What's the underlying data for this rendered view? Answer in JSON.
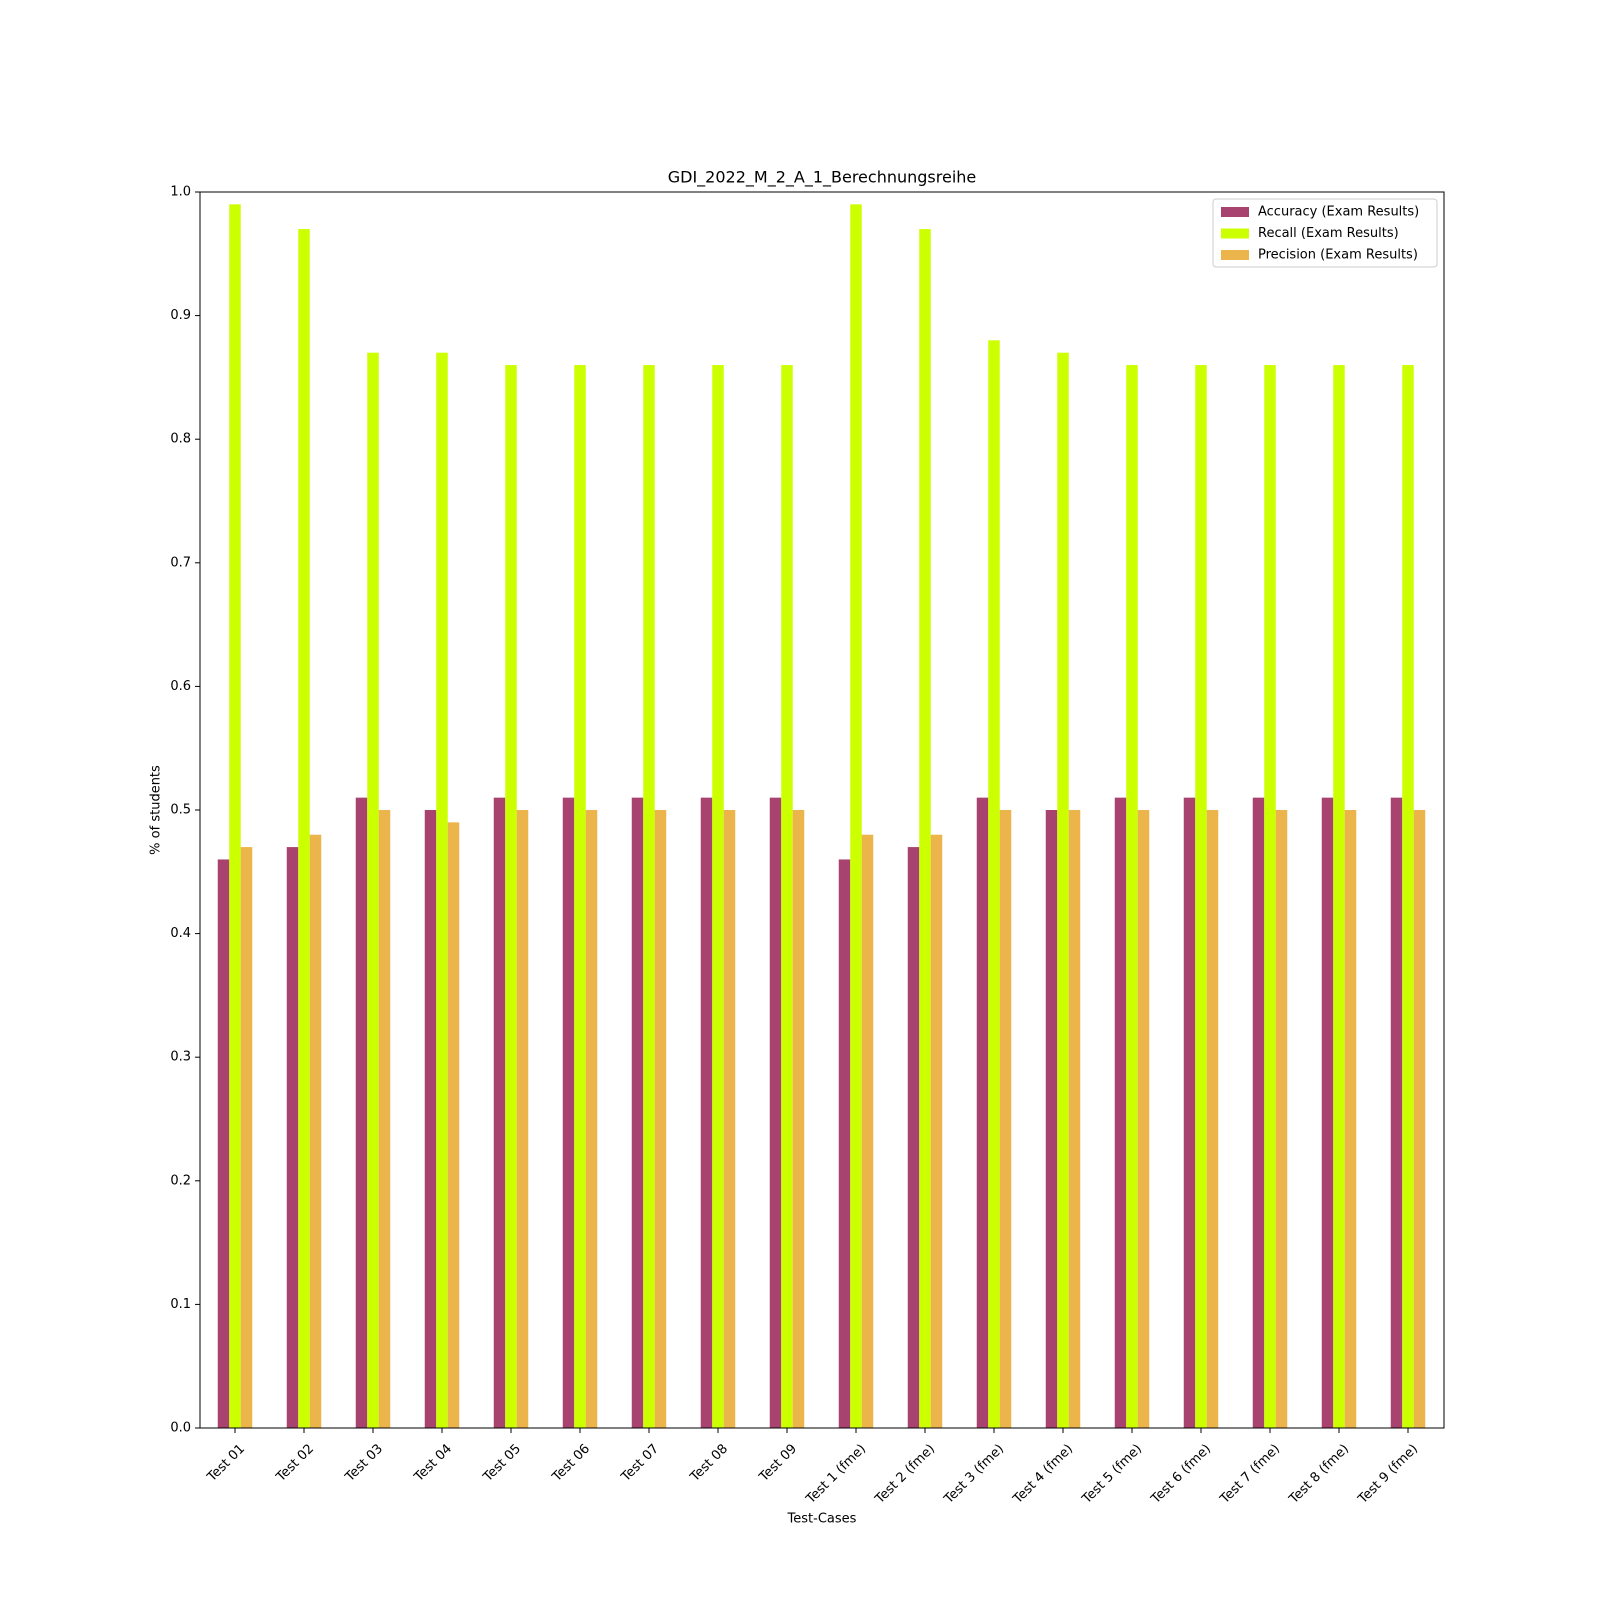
{
  "chart_data": {
    "type": "bar",
    "title": "GDI_2022_M_2_A_1_Berechnungsreihe",
    "xlabel": "Test-Cases",
    "ylabel": "% of students",
    "ylim": [
      0,
      1.0
    ],
    "yticks": [
      "0.0",
      "0.1",
      "0.2",
      "0.3",
      "0.4",
      "0.5",
      "0.6",
      "0.7",
      "0.8",
      "0.9",
      "1.0"
    ],
    "grid": false,
    "legend_position": "top-right",
    "categories": [
      "Test 01",
      "Test 02",
      "Test 03",
      "Test 04",
      "Test 05",
      "Test 06",
      "Test 07",
      "Test 08",
      "Test 09",
      "Test 1 (fme)",
      "Test 2 (fme)",
      "Test 3 (fme)",
      "Test 4 (fme)",
      "Test 5 (fme)",
      "Test 6 (fme)",
      "Test 7 (fme)",
      "Test 8 (fme)",
      "Test 9 (fme)"
    ],
    "series": [
      {
        "name": "Accuracy (Exam Results)",
        "color": "#a8436f",
        "values": [
          0.46,
          0.47,
          0.51,
          0.5,
          0.51,
          0.51,
          0.51,
          0.51,
          0.51,
          0.46,
          0.47,
          0.51,
          0.5,
          0.51,
          0.51,
          0.51,
          0.51,
          0.51
        ]
      },
      {
        "name": "Recall (Exam Results)",
        "color": "#ccff00",
        "values": [
          0.99,
          0.97,
          0.87,
          0.87,
          0.86,
          0.86,
          0.86,
          0.86,
          0.86,
          0.99,
          0.97,
          0.88,
          0.87,
          0.86,
          0.86,
          0.86,
          0.86,
          0.86
        ]
      },
      {
        "name": "Precision (Exam Results)",
        "color": "#ebb54b",
        "values": [
          0.47,
          0.48,
          0.5,
          0.49,
          0.5,
          0.5,
          0.5,
          0.5,
          0.5,
          0.48,
          0.48,
          0.5,
          0.5,
          0.5,
          0.5,
          0.5,
          0.5,
          0.5
        ]
      }
    ]
  }
}
